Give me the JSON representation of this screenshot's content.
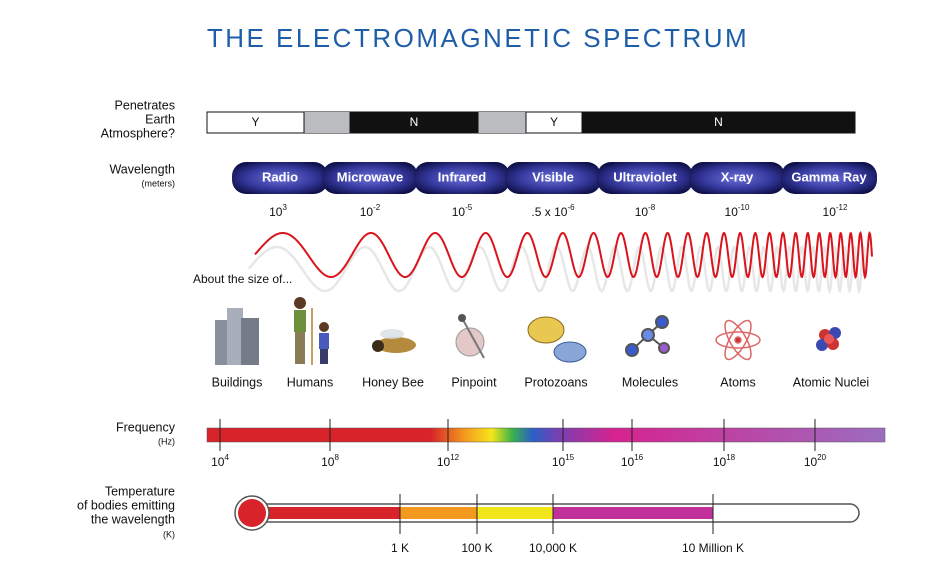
{
  "title": "THE ELECTROMAGNETIC SPECTRUM",
  "atmosphere": {
    "label": [
      "Penetrates",
      "Earth",
      "Atmosphere?"
    ],
    "segments": [
      "Y",
      "N",
      "Y",
      "N"
    ]
  },
  "wavelength": {
    "label": "Wavelength",
    "unit": "(meters)",
    "bands": [
      "Radio",
      "Microwave",
      "Infrared",
      "Visible",
      "Ultraviolet",
      "X-ray",
      "Gamma Ray"
    ],
    "values": [
      {
        "base": "10",
        "exp": "3"
      },
      {
        "base": "10",
        "exp": "-2"
      },
      {
        "base": "10",
        "exp": "-5"
      },
      {
        "base": ".5 x 10",
        "exp": "-6"
      },
      {
        "base": "10",
        "exp": "-8"
      },
      {
        "base": "10",
        "exp": "-10"
      },
      {
        "base": "10",
        "exp": "-12"
      }
    ]
  },
  "size": {
    "label": "About the size of...",
    "objects": [
      "Buildings",
      "Humans",
      "Honey Bee",
      "Pinpoint",
      "Protozoans",
      "Molecules",
      "Atoms",
      "Atomic Nuclei"
    ]
  },
  "frequency": {
    "label": "Frequency",
    "unit": "(Hz)",
    "ticks": [
      {
        "base": "10",
        "exp": "4"
      },
      {
        "base": "10",
        "exp": "8"
      },
      {
        "base": "10",
        "exp": "12"
      },
      {
        "base": "10",
        "exp": "15"
      },
      {
        "base": "10",
        "exp": "16"
      },
      {
        "base": "10",
        "exp": "18"
      },
      {
        "base": "10",
        "exp": "20"
      }
    ]
  },
  "temperature": {
    "label": [
      "Temperature",
      "of bodies emitting",
      "the wavelength"
    ],
    "unit": "(K)",
    "ticks": [
      "1 K",
      "100 K",
      "10,000 K",
      "10 Million K"
    ]
  }
}
